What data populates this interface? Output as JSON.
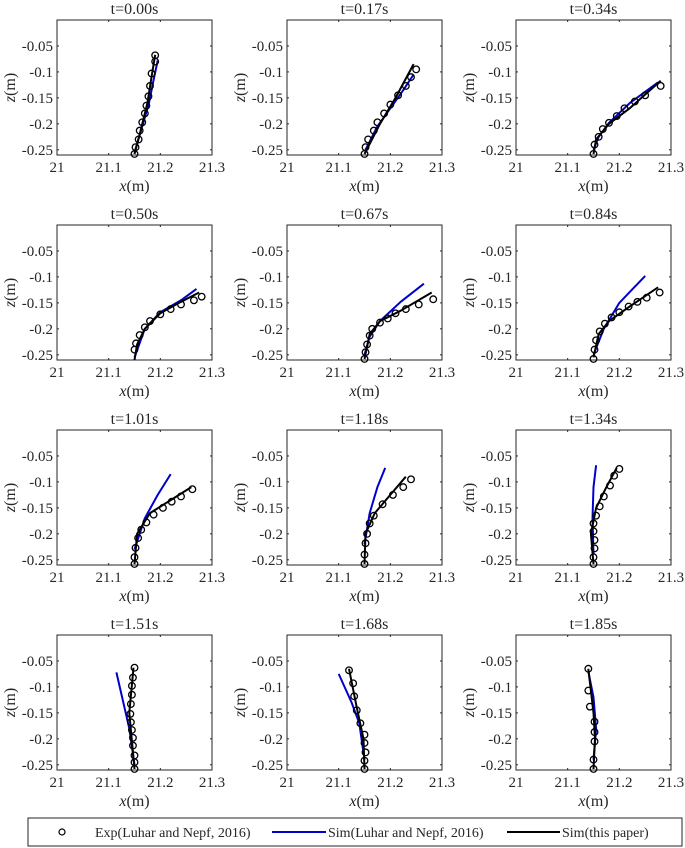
{
  "chart_data": {
    "type": "line",
    "xlabel": "x(m)",
    "xlabel_var": "x",
    "xlabel_unit": "(m)",
    "ylabel_var": "z",
    "ylabel_unit": "(m)",
    "xlim": [
      21,
      21.3
    ],
    "ylim": [
      -0.26,
      0
    ],
    "xticks": [
      21,
      21.1,
      21.2,
      21.3
    ],
    "xtick_labels": [
      "21",
      "21.1",
      "21.2",
      "21.3"
    ],
    "yticks": [
      -0.25,
      -0.2,
      -0.15,
      -0.1,
      -0.05
    ],
    "ytick_labels": [
      "-0.25",
      "-0.2",
      "-0.15",
      "-0.1",
      "-0.05"
    ],
    "grid": false,
    "colors": {
      "exp": "#000000",
      "sim_luhar": "#0000cc",
      "sim_paper": "#000000"
    },
    "legend": {
      "placement": "bottom",
      "entries": [
        {
          "name": "Exp(Luhar and Nepf, 2016)",
          "marker": "circle"
        },
        {
          "name": "Sim(Luhar and Nepf, 2016)",
          "marker": "line"
        },
        {
          "name": "Sim(this paper)",
          "marker": "line"
        }
      ]
    },
    "panels": [
      {
        "title": "t=0.00s",
        "exp": [
          [
            21.15,
            -0.258
          ],
          [
            21.152,
            -0.245
          ],
          [
            21.158,
            -0.23
          ],
          [
            21.16,
            -0.213
          ],
          [
            21.165,
            -0.197
          ],
          [
            21.17,
            -0.18
          ],
          [
            21.173,
            -0.165
          ],
          [
            21.177,
            -0.147
          ],
          [
            21.18,
            -0.127
          ],
          [
            21.183,
            -0.103
          ],
          [
            21.19,
            -0.08
          ],
          [
            21.19,
            -0.068
          ]
        ],
        "sim_luhar": [
          [
            21.15,
            -0.255
          ],
          [
            21.162,
            -0.215
          ],
          [
            21.178,
            -0.16
          ],
          [
            21.186,
            -0.12
          ],
          [
            21.195,
            -0.078
          ]
        ],
        "sim_paper": [
          [
            21.15,
            -0.258
          ],
          [
            21.16,
            -0.22
          ],
          [
            21.175,
            -0.16
          ],
          [
            21.183,
            -0.11
          ],
          [
            21.19,
            -0.067
          ]
        ]
      },
      {
        "title": "t=0.17s",
        "exp": [
          [
            21.15,
            -0.258
          ],
          [
            21.152,
            -0.245
          ],
          [
            21.157,
            -0.23
          ],
          [
            21.168,
            -0.213
          ],
          [
            21.175,
            -0.197
          ],
          [
            21.188,
            -0.18
          ],
          [
            21.2,
            -0.163
          ],
          [
            21.215,
            -0.145
          ],
          [
            21.23,
            -0.127
          ],
          [
            21.24,
            -0.11
          ],
          [
            21.25,
            -0.095
          ]
        ],
        "sim_luhar": [
          [
            21.152,
            -0.25
          ],
          [
            21.175,
            -0.205
          ],
          [
            21.2,
            -0.17
          ],
          [
            21.225,
            -0.135
          ],
          [
            21.245,
            -0.105
          ]
        ],
        "sim_paper": [
          [
            21.15,
            -0.258
          ],
          [
            21.18,
            -0.2
          ],
          [
            21.21,
            -0.15
          ],
          [
            21.245,
            -0.085
          ]
        ]
      },
      {
        "title": "t=0.34s",
        "exp": [
          [
            21.15,
            -0.258
          ],
          [
            21.152,
            -0.24
          ],
          [
            21.16,
            -0.225
          ],
          [
            21.168,
            -0.21
          ],
          [
            21.18,
            -0.198
          ],
          [
            21.195,
            -0.185
          ],
          [
            21.21,
            -0.17
          ],
          [
            21.23,
            -0.157
          ],
          [
            21.25,
            -0.145
          ],
          [
            21.28,
            -0.127
          ]
        ],
        "sim_luhar": [
          [
            21.15,
            -0.25
          ],
          [
            21.16,
            -0.225
          ],
          [
            21.18,
            -0.198
          ],
          [
            21.22,
            -0.16
          ],
          [
            21.275,
            -0.12
          ]
        ],
        "sim_paper": [
          [
            21.15,
            -0.258
          ],
          [
            21.155,
            -0.23
          ],
          [
            21.18,
            -0.2
          ],
          [
            21.22,
            -0.17
          ],
          [
            21.28,
            -0.117
          ]
        ]
      },
      {
        "title": "t=0.50s",
        "exp": [
          [
            21.15,
            -0.24
          ],
          [
            21.153,
            -0.228
          ],
          [
            21.16,
            -0.212
          ],
          [
            21.17,
            -0.197
          ],
          [
            21.18,
            -0.185
          ],
          [
            21.2,
            -0.172
          ],
          [
            21.22,
            -0.162
          ],
          [
            21.24,
            -0.153
          ],
          [
            21.265,
            -0.145
          ],
          [
            21.28,
            -0.138
          ]
        ],
        "sim_luhar": [
          [
            21.15,
            -0.255
          ],
          [
            21.17,
            -0.2
          ],
          [
            21.2,
            -0.168
          ],
          [
            21.24,
            -0.145
          ],
          [
            21.27,
            -0.123
          ]
        ],
        "sim_paper": [
          [
            21.15,
            -0.26
          ],
          [
            21.155,
            -0.23
          ],
          [
            21.17,
            -0.2
          ],
          [
            21.2,
            -0.17
          ],
          [
            21.24,
            -0.148
          ],
          [
            21.275,
            -0.13
          ]
        ]
      },
      {
        "title": "t=0.67s",
        "exp": [
          [
            21.15,
            -0.258
          ],
          [
            21.152,
            -0.245
          ],
          [
            21.155,
            -0.23
          ],
          [
            21.16,
            -0.213
          ],
          [
            21.165,
            -0.2
          ],
          [
            21.18,
            -0.188
          ],
          [
            21.195,
            -0.18
          ],
          [
            21.21,
            -0.17
          ],
          [
            21.23,
            -0.162
          ],
          [
            21.255,
            -0.153
          ],
          [
            21.283,
            -0.143
          ]
        ],
        "sim_luhar": [
          [
            21.15,
            -0.25
          ],
          [
            21.16,
            -0.215
          ],
          [
            21.18,
            -0.185
          ],
          [
            21.22,
            -0.148
          ],
          [
            21.265,
            -0.113
          ]
        ],
        "sim_paper": [
          [
            21.15,
            -0.258
          ],
          [
            21.16,
            -0.21
          ],
          [
            21.18,
            -0.185
          ],
          [
            21.22,
            -0.165
          ],
          [
            21.28,
            -0.13
          ]
        ]
      },
      {
        "title": "t=0.84s",
        "exp": [
          [
            21.15,
            -0.258
          ],
          [
            21.152,
            -0.24
          ],
          [
            21.155,
            -0.222
          ],
          [
            21.162,
            -0.205
          ],
          [
            21.172,
            -0.19
          ],
          [
            21.185,
            -0.178
          ],
          [
            21.2,
            -0.168
          ],
          [
            21.218,
            -0.157
          ],
          [
            21.235,
            -0.148
          ],
          [
            21.253,
            -0.14
          ],
          [
            21.278,
            -0.13
          ]
        ],
        "sim_luhar": [
          [
            21.15,
            -0.25
          ],
          [
            21.17,
            -0.2
          ],
          [
            21.2,
            -0.15
          ],
          [
            21.25,
            -0.098
          ]
        ],
        "sim_paper": [
          [
            21.15,
            -0.255
          ],
          [
            21.16,
            -0.21
          ],
          [
            21.18,
            -0.185
          ],
          [
            21.22,
            -0.157
          ],
          [
            21.275,
            -0.12
          ]
        ]
      },
      {
        "title": "t=1.01s",
        "exp": [
          [
            21.15,
            -0.258
          ],
          [
            21.15,
            -0.245
          ],
          [
            21.152,
            -0.227
          ],
          [
            21.157,
            -0.208
          ],
          [
            21.163,
            -0.192
          ],
          [
            21.173,
            -0.178
          ],
          [
            21.187,
            -0.163
          ],
          [
            21.205,
            -0.15
          ],
          [
            21.222,
            -0.138
          ],
          [
            21.24,
            -0.128
          ],
          [
            21.262,
            -0.114
          ]
        ],
        "sim_luhar": [
          [
            21.15,
            -0.23
          ],
          [
            21.17,
            -0.17
          ],
          [
            21.195,
            -0.125
          ],
          [
            21.22,
            -0.085
          ]
        ],
        "sim_paper": [
          [
            21.15,
            -0.258
          ],
          [
            21.155,
            -0.2
          ],
          [
            21.18,
            -0.16
          ],
          [
            21.22,
            -0.135
          ],
          [
            21.26,
            -0.11
          ]
        ]
      },
      {
        "title": "t=1.18s",
        "exp": [
          [
            21.15,
            -0.258
          ],
          [
            21.15,
            -0.24
          ],
          [
            21.152,
            -0.218
          ],
          [
            21.155,
            -0.2
          ],
          [
            21.16,
            -0.18
          ],
          [
            21.168,
            -0.165
          ],
          [
            21.185,
            -0.143
          ],
          [
            21.205,
            -0.125
          ],
          [
            21.225,
            -0.11
          ],
          [
            21.24,
            -0.095
          ]
        ],
        "sim_luhar": [
          [
            21.15,
            -0.22
          ],
          [
            21.16,
            -0.16
          ],
          [
            21.175,
            -0.11
          ],
          [
            21.19,
            -0.073
          ]
        ],
        "sim_paper": [
          [
            21.15,
            -0.258
          ],
          [
            21.152,
            -0.2
          ],
          [
            21.17,
            -0.16
          ],
          [
            21.2,
            -0.125
          ],
          [
            21.23,
            -0.09
          ]
        ]
      },
      {
        "title": "t=1.34s",
        "exp": [
          [
            21.15,
            -0.258
          ],
          [
            21.15,
            -0.245
          ],
          [
            21.152,
            -0.228
          ],
          [
            21.152,
            -0.212
          ],
          [
            21.15,
            -0.195
          ],
          [
            21.15,
            -0.18
          ],
          [
            21.155,
            -0.165
          ],
          [
            21.162,
            -0.147
          ],
          [
            21.17,
            -0.128
          ],
          [
            21.182,
            -0.107
          ],
          [
            21.19,
            -0.088
          ],
          [
            21.2,
            -0.075
          ]
        ],
        "sim_luhar": [
          [
            21.15,
            -0.24
          ],
          [
            21.148,
            -0.17
          ],
          [
            21.15,
            -0.11
          ],
          [
            21.155,
            -0.068
          ]
        ],
        "sim_paper": [
          [
            21.15,
            -0.258
          ],
          [
            21.145,
            -0.2
          ],
          [
            21.155,
            -0.15
          ],
          [
            21.175,
            -0.11
          ],
          [
            21.195,
            -0.073
          ]
        ]
      },
      {
        "title": "t=1.51s",
        "exp": [
          [
            21.15,
            -0.258
          ],
          [
            21.15,
            -0.245
          ],
          [
            21.15,
            -0.232
          ],
          [
            21.147,
            -0.213
          ],
          [
            21.147,
            -0.198
          ],
          [
            21.145,
            -0.183
          ],
          [
            21.143,
            -0.168
          ],
          [
            21.142,
            -0.152
          ],
          [
            21.143,
            -0.133
          ],
          [
            21.145,
            -0.115
          ],
          [
            21.145,
            -0.098
          ],
          [
            21.147,
            -0.082
          ],
          [
            21.15,
            -0.063
          ]
        ],
        "sim_luhar": [
          [
            21.15,
            -0.25
          ],
          [
            21.14,
            -0.18
          ],
          [
            21.115,
            -0.072
          ]
        ],
        "sim_paper": [
          [
            21.15,
            -0.258
          ],
          [
            21.14,
            -0.15
          ],
          [
            21.148,
            -0.063
          ]
        ]
      },
      {
        "title": "t=1.68s",
        "exp": [
          [
            21.15,
            -0.258
          ],
          [
            21.15,
            -0.242
          ],
          [
            21.152,
            -0.226
          ],
          [
            21.15,
            -0.208
          ],
          [
            21.15,
            -0.192
          ],
          [
            21.142,
            -0.17
          ],
          [
            21.135,
            -0.145
          ],
          [
            21.13,
            -0.118
          ],
          [
            21.128,
            -0.093
          ],
          [
            21.12,
            -0.068
          ]
        ],
        "sim_luhar": [
          [
            21.15,
            -0.24
          ],
          [
            21.14,
            -0.17
          ],
          [
            21.125,
            -0.13
          ],
          [
            21.1,
            -0.075
          ]
        ],
        "sim_paper": [
          [
            21.15,
            -0.258
          ],
          [
            21.148,
            -0.2
          ],
          [
            21.135,
            -0.14
          ],
          [
            21.12,
            -0.065
          ]
        ]
      },
      {
        "title": "t=1.85s",
        "exp": [
          [
            21.15,
            -0.258
          ],
          [
            21.15,
            -0.24
          ],
          [
            21.152,
            -0.205
          ],
          [
            21.152,
            -0.187
          ],
          [
            21.152,
            -0.167
          ],
          [
            21.143,
            -0.138
          ],
          [
            21.14,
            -0.107
          ],
          [
            21.14,
            -0.065
          ]
        ],
        "sim_luhar": [
          [
            21.15,
            -0.24
          ],
          [
            21.155,
            -0.18
          ],
          [
            21.15,
            -0.12
          ],
          [
            21.14,
            -0.07
          ]
        ],
        "sim_paper": [
          [
            21.15,
            -0.258
          ],
          [
            21.153,
            -0.2
          ],
          [
            21.15,
            -0.15
          ],
          [
            21.14,
            -0.065
          ]
        ]
      }
    ]
  }
}
